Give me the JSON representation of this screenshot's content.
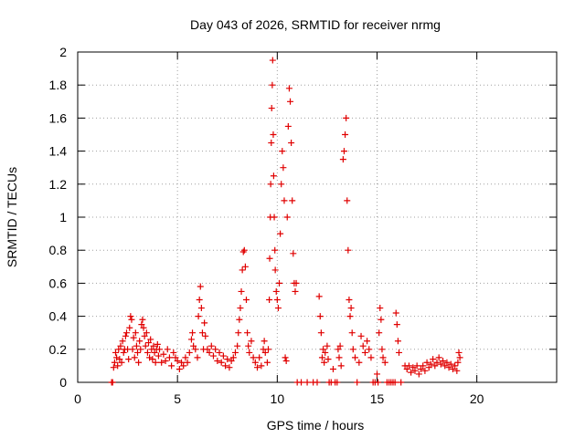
{
  "chart_data": {
    "type": "scatter",
    "title": "Day 043 of 2026, SRMTID for receiver nrmg",
    "xlabel": "GPS time / hours",
    "ylabel": "SRMTID / TECUs",
    "xlim": [
      0,
      24
    ],
    "ylim": [
      0,
      2
    ],
    "x_ticks": [
      0,
      5,
      10,
      15,
      20
    ],
    "y_ticks": [
      0,
      0.2,
      0.4,
      0.6,
      0.8,
      1,
      1.2,
      1.4,
      1.6,
      1.8,
      2
    ],
    "x_tick_labels": [
      "0",
      "5",
      "10",
      "15",
      "20"
    ],
    "y_tick_labels": [
      "0",
      "0.2",
      "0.4",
      "0.6",
      "0.8",
      "1",
      "1.2",
      "1.4",
      "1.6",
      "1.8",
      "2"
    ],
    "grid": true,
    "marker": "+",
    "color": "#e00000",
    "series": [
      {
        "name": "SRMTID",
        "points": [
          [
            1.7,
            0.0
          ],
          [
            1.75,
            0.0
          ],
          [
            1.8,
            0.09
          ],
          [
            1.85,
            0.12
          ],
          [
            1.9,
            0.18
          ],
          [
            1.95,
            0.15
          ],
          [
            2.0,
            0.1
          ],
          [
            2.05,
            0.2
          ],
          [
            2.1,
            0.14
          ],
          [
            2.15,
            0.22
          ],
          [
            2.2,
            0.12
          ],
          [
            2.25,
            0.25
          ],
          [
            2.3,
            0.18
          ],
          [
            2.35,
            0.2
          ],
          [
            2.4,
            0.28
          ],
          [
            2.45,
            0.3
          ],
          [
            2.5,
            0.2
          ],
          [
            2.55,
            0.14
          ],
          [
            2.6,
            0.33
          ],
          [
            2.65,
            0.4
          ],
          [
            2.7,
            0.38
          ],
          [
            2.75,
            0.2
          ],
          [
            2.8,
            0.27
          ],
          [
            2.85,
            0.15
          ],
          [
            2.9,
            0.3
          ],
          [
            2.95,
            0.22
          ],
          [
            3.0,
            0.18
          ],
          [
            3.05,
            0.12
          ],
          [
            3.1,
            0.25
          ],
          [
            3.15,
            0.2
          ],
          [
            3.2,
            0.35
          ],
          [
            3.25,
            0.38
          ],
          [
            3.3,
            0.33
          ],
          [
            3.35,
            0.28
          ],
          [
            3.4,
            0.22
          ],
          [
            3.45,
            0.3
          ],
          [
            3.5,
            0.18
          ],
          [
            3.55,
            0.24
          ],
          [
            3.6,
            0.15
          ],
          [
            3.65,
            0.26
          ],
          [
            3.7,
            0.2
          ],
          [
            3.75,
            0.14
          ],
          [
            3.8,
            0.22
          ],
          [
            3.85,
            0.18
          ],
          [
            3.9,
            0.12
          ],
          [
            3.95,
            0.2
          ],
          [
            4.0,
            0.23
          ],
          [
            4.05,
            0.16
          ],
          [
            4.1,
            0.2
          ],
          [
            4.2,
            0.12
          ],
          [
            4.3,
            0.17
          ],
          [
            4.4,
            0.13
          ],
          [
            4.5,
            0.2
          ],
          [
            4.6,
            0.15
          ],
          [
            4.7,
            0.1
          ],
          [
            4.8,
            0.18
          ],
          [
            4.9,
            0.15
          ],
          [
            5.0,
            0.13
          ],
          [
            5.1,
            0.08
          ],
          [
            5.2,
            0.12
          ],
          [
            5.3,
            0.1
          ],
          [
            5.4,
            0.15
          ],
          [
            5.5,
            0.12
          ],
          [
            5.6,
            0.18
          ],
          [
            5.7,
            0.26
          ],
          [
            5.75,
            0.3
          ],
          [
            5.8,
            0.22
          ],
          [
            5.9,
            0.2
          ],
          [
            6.0,
            0.15
          ],
          [
            6.05,
            0.4
          ],
          [
            6.1,
            0.5
          ],
          [
            6.15,
            0.58
          ],
          [
            6.2,
            0.45
          ],
          [
            6.25,
            0.3
          ],
          [
            6.3,
            0.2
          ],
          [
            6.35,
            0.36
          ],
          [
            6.4,
            0.28
          ],
          [
            6.5,
            0.2
          ],
          [
            6.6,
            0.18
          ],
          [
            6.7,
            0.22
          ],
          [
            6.8,
            0.16
          ],
          [
            6.9,
            0.2
          ],
          [
            7.0,
            0.13
          ],
          [
            7.1,
            0.18
          ],
          [
            7.2,
            0.12
          ],
          [
            7.3,
            0.16
          ],
          [
            7.4,
            0.1
          ],
          [
            7.5,
            0.14
          ],
          [
            7.6,
            0.09
          ],
          [
            7.7,
            0.13
          ],
          [
            7.8,
            0.15
          ],
          [
            7.9,
            0.18
          ],
          [
            8.0,
            0.22
          ],
          [
            8.05,
            0.3
          ],
          [
            8.1,
            0.38
          ],
          [
            8.15,
            0.45
          ],
          [
            8.2,
            0.55
          ],
          [
            8.25,
            0.68
          ],
          [
            8.3,
            0.79
          ],
          [
            8.35,
            0.8
          ],
          [
            8.4,
            0.7
          ],
          [
            8.45,
            0.5
          ],
          [
            8.5,
            0.3
          ],
          [
            8.55,
            0.22
          ],
          [
            8.6,
            0.18
          ],
          [
            8.7,
            0.25
          ],
          [
            8.8,
            0.15
          ],
          [
            8.9,
            0.12
          ],
          [
            9.0,
            0.09
          ],
          [
            9.1,
            0.15
          ],
          [
            9.2,
            0.1
          ],
          [
            9.3,
            0.2
          ],
          [
            9.35,
            0.25
          ],
          [
            9.4,
            0.18
          ],
          [
            9.5,
            0.12
          ],
          [
            9.55,
            0.2
          ],
          [
            9.6,
            0.5
          ],
          [
            9.62,
            0.75
          ],
          [
            9.65,
            1.0
          ],
          [
            9.67,
            1.2
          ],
          [
            9.7,
            1.45
          ],
          [
            9.72,
            1.66
          ],
          [
            9.75,
            1.8
          ],
          [
            9.77,
            1.95
          ],
          [
            9.8,
            1.5
          ],
          [
            9.82,
            1.25
          ],
          [
            9.85,
            1.0
          ],
          [
            9.88,
            0.8
          ],
          [
            9.9,
            0.68
          ],
          [
            9.95,
            0.55
          ],
          [
            10.0,
            0.5
          ],
          [
            10.05,
            0.45
          ],
          [
            10.1,
            0.6
          ],
          [
            10.15,
            0.9
          ],
          [
            10.2,
            1.2
          ],
          [
            10.25,
            1.4
          ],
          [
            10.3,
            1.3
          ],
          [
            10.35,
            1.1
          ],
          [
            10.4,
            0.15
          ],
          [
            10.45,
            0.13
          ],
          [
            10.5,
            1.0
          ],
          [
            10.55,
            1.55
          ],
          [
            10.6,
            1.78
          ],
          [
            10.65,
            1.7
          ],
          [
            10.7,
            1.45
          ],
          [
            10.75,
            1.1
          ],
          [
            10.8,
            0.78
          ],
          [
            10.85,
            0.6
          ],
          [
            10.9,
            0.55
          ],
          [
            10.95,
            0.6
          ],
          [
            11.0,
            0.0
          ],
          [
            11.2,
            0.0
          ],
          [
            11.5,
            0.0
          ],
          [
            11.8,
            0.0
          ],
          [
            12.0,
            0.0
          ],
          [
            12.1,
            0.52
          ],
          [
            12.15,
            0.4
          ],
          [
            12.2,
            0.3
          ],
          [
            12.25,
            0.15
          ],
          [
            12.3,
            0.2
          ],
          [
            12.35,
            0.12
          ],
          [
            12.4,
            0.18
          ],
          [
            12.5,
            0.22
          ],
          [
            12.55,
            0.14
          ],
          [
            12.6,
            0.0
          ],
          [
            12.7,
            0.0
          ],
          [
            12.8,
            0.08
          ],
          [
            12.9,
            0.0
          ],
          [
            13.0,
            0.0
          ],
          [
            13.05,
            0.2
          ],
          [
            13.1,
            0.15
          ],
          [
            13.15,
            0.22
          ],
          [
            13.2,
            0.1
          ],
          [
            13.3,
            1.35
          ],
          [
            13.35,
            1.4
          ],
          [
            13.4,
            1.5
          ],
          [
            13.45,
            1.6
          ],
          [
            13.5,
            1.1
          ],
          [
            13.55,
            0.8
          ],
          [
            13.6,
            0.5
          ],
          [
            13.65,
            0.4
          ],
          [
            13.7,
            0.45
          ],
          [
            13.75,
            0.3
          ],
          [
            13.8,
            0.2
          ],
          [
            13.9,
            0.15
          ],
          [
            14.0,
            0.0
          ],
          [
            14.1,
            0.12
          ],
          [
            14.2,
            0.28
          ],
          [
            14.3,
            0.22
          ],
          [
            14.4,
            0.18
          ],
          [
            14.5,
            0.25
          ],
          [
            14.6,
            0.2
          ],
          [
            14.7,
            0.15
          ],
          [
            14.8,
            0.0
          ],
          [
            14.9,
            0.0
          ],
          [
            15.0,
            0.05
          ],
          [
            15.05,
            0.0
          ],
          [
            15.1,
            0.3
          ],
          [
            15.15,
            0.45
          ],
          [
            15.2,
            0.38
          ],
          [
            15.25,
            0.2
          ],
          [
            15.3,
            0.15
          ],
          [
            15.4,
            0.12
          ],
          [
            15.5,
            0.0
          ],
          [
            15.6,
            0.0
          ],
          [
            15.7,
            0.0
          ],
          [
            15.8,
            0.0
          ],
          [
            15.9,
            0.0
          ],
          [
            15.95,
            0.42
          ],
          [
            16.0,
            0.35
          ],
          [
            16.05,
            0.25
          ],
          [
            16.1,
            0.18
          ],
          [
            16.2,
            0.0
          ],
          [
            16.4,
            0.1
          ],
          [
            16.5,
            0.08
          ],
          [
            16.6,
            0.1
          ],
          [
            16.7,
            0.06
          ],
          [
            16.8,
            0.09
          ],
          [
            16.9,
            0.07
          ],
          [
            17.0,
            0.1
          ],
          [
            17.1,
            0.05
          ],
          [
            17.2,
            0.08
          ],
          [
            17.3,
            0.1
          ],
          [
            17.4,
            0.07
          ],
          [
            17.5,
            0.12
          ],
          [
            17.6,
            0.09
          ],
          [
            17.7,
            0.11
          ],
          [
            17.8,
            0.14
          ],
          [
            17.9,
            0.1
          ],
          [
            18.0,
            0.12
          ],
          [
            18.1,
            0.15
          ],
          [
            18.2,
            0.11
          ],
          [
            18.3,
            0.13
          ],
          [
            18.4,
            0.1
          ],
          [
            18.5,
            0.12
          ],
          [
            18.6,
            0.09
          ],
          [
            18.7,
            0.11
          ],
          [
            18.8,
            0.08
          ],
          [
            18.9,
            0.1
          ],
          [
            19.0,
            0.07
          ],
          [
            19.05,
            0.12
          ],
          [
            19.1,
            0.18
          ],
          [
            19.15,
            0.15
          ]
        ]
      }
    ]
  }
}
